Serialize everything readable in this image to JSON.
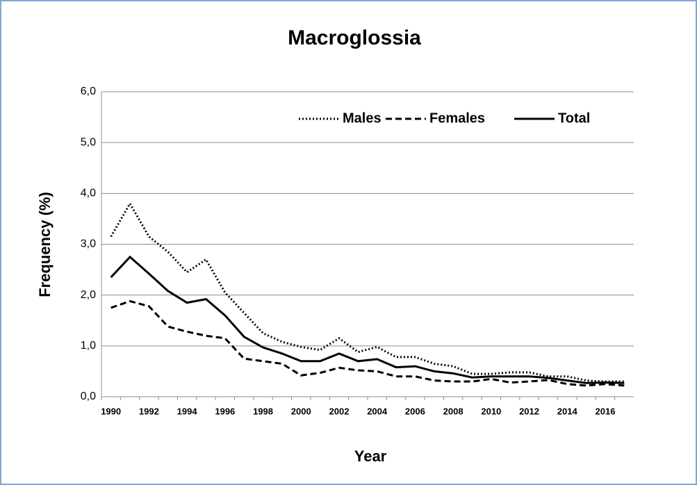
{
  "chart_data": {
    "type": "line",
    "title": "Macroglossia",
    "x_label": "Year",
    "y_label": "Frequency (%)",
    "categories": [
      "1990",
      null,
      "1992",
      null,
      "1994",
      null,
      "1996",
      null,
      "1998",
      null,
      "2000",
      null,
      "2002",
      null,
      "2004",
      null,
      "2006",
      null,
      "2008",
      null,
      "2010",
      null,
      "2012",
      null,
      "2014",
      null,
      "2016",
      null
    ],
    "series": [
      {
        "name": "Males",
        "color": "#000000",
        "style": "dotted",
        "values": [
          3.15,
          3.8,
          3.15,
          2.85,
          2.45,
          2.7,
          2.05,
          1.65,
          1.25,
          1.08,
          0.98,
          0.92,
          1.15,
          0.88,
          0.98,
          0.78,
          0.78,
          0.65,
          0.6,
          0.45,
          0.45,
          0.48,
          0.48,
          0.4,
          0.4,
          0.32,
          0.3,
          0.3
        ]
      },
      {
        "name": "Females",
        "color": "#000000",
        "style": "dashed",
        "values": [
          1.75,
          1.88,
          1.78,
          1.38,
          1.28,
          1.2,
          1.15,
          0.75,
          0.7,
          0.65,
          0.42,
          0.47,
          0.57,
          0.52,
          0.5,
          0.4,
          0.4,
          0.32,
          0.3,
          0.3,
          0.35,
          0.28,
          0.3,
          0.33,
          0.25,
          0.22,
          0.25,
          0.22
        ]
      },
      {
        "name": "Total",
        "color": "#000000",
        "style": "solid",
        "values": [
          2.35,
          2.75,
          2.42,
          2.08,
          1.85,
          1.92,
          1.6,
          1.18,
          0.97,
          0.85,
          0.7,
          0.7,
          0.85,
          0.7,
          0.74,
          0.58,
          0.6,
          0.5,
          0.46,
          0.38,
          0.4,
          0.4,
          0.4,
          0.37,
          0.32,
          0.27,
          0.28,
          0.27
        ]
      }
    ],
    "ylim": [
      0,
      6
    ],
    "yticks": [
      {
        "value": 0,
        "label": "0,0"
      },
      {
        "value": 1,
        "label": "1,0"
      },
      {
        "value": 2,
        "label": "2,0"
      },
      {
        "value": 3,
        "label": "3,0"
      },
      {
        "value": 4,
        "label": "4,0"
      },
      {
        "value": 5,
        "label": "5,0"
      },
      {
        "value": 6,
        "label": "6,0"
      }
    ],
    "grid": true,
    "legend": "top-right"
  }
}
